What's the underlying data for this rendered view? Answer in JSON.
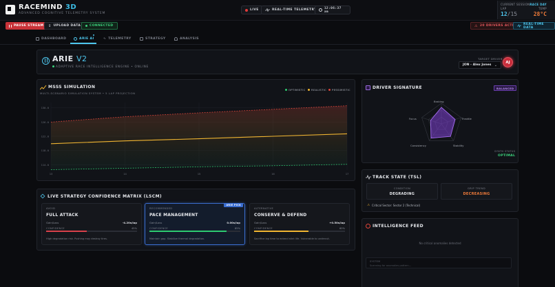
{
  "header": {
    "brand_main": "RACEMIND",
    "brand_accent": "3D",
    "subtitle": "ADVANCED COGNITIVE TELEMETRY SYSTEM",
    "live_label": "LIVE",
    "telemetry_label": "REAL-TIME TELEMETRY",
    "clock": "12:06:37 am",
    "session": {
      "label": "CURRENT SESSION",
      "day_label": "RACE DAY",
      "lap_label": "LAP",
      "temp_label": "TEMP",
      "lap_current": "12",
      "lap_total": "/15",
      "temp": "28°C"
    }
  },
  "actions": {
    "pause_label": "PAUSE STREAM",
    "upload_label": "UPLOAD DATA",
    "connected_label": "CONNECTED",
    "drivers_active_label": "20 DRIVERS ACTIVE",
    "realtime_data_label": "REAL-TIME DATA"
  },
  "nav": {
    "tabs": [
      {
        "label": "DASHBOARD"
      },
      {
        "label": "ARIE AI"
      },
      {
        "label": "TELEMETRY"
      },
      {
        "label": "STRATEGY"
      },
      {
        "label": "ANALYSIS"
      }
    ]
  },
  "arie": {
    "title": "ARIE",
    "version": "V2",
    "subtitle": "ADAPTIVE RACE INTELLIGENCE ENGINE • ONLINE",
    "target_driver_label": "TARGET DRIVER",
    "selected_driver": "JON - Alex Jones",
    "avatar_initials": "AJ"
  },
  "simulation": {
    "title": "MSSS SIMULATION",
    "subtitle": "MULTI-SCENARIO SIMULATION SYSTEM • 5 LAP PROJECTION",
    "legend": [
      "OPTIMISTIC",
      "REALISTIC",
      "PESSIMISTIC"
    ],
    "colors": {
      "optimistic": "#2ecc71",
      "realistic": "#f2b632",
      "pessimistic": "#e0453a"
    }
  },
  "chart_data": {
    "type": "line",
    "title": "MSSS SIMULATION",
    "xlabel": "",
    "ylabel": "",
    "x": [
      13,
      14,
      15,
      16,
      17
    ],
    "x_ticks": [
      "13",
      "14",
      "15",
      "16",
      "17"
    ],
    "y_ticks": [
      "130.0",
      "126.0",
      "122.0",
      "118.0",
      "114.0"
    ],
    "ylim": [
      112.5,
      131.5
    ],
    "series": [
      {
        "name": "PESSIMISTIC",
        "values": [
          126.0,
          127.5,
          128.6,
          129.6,
          130.6
        ],
        "color": "#e0453a",
        "style": "dashed"
      },
      {
        "name": "REALISTIC",
        "values": [
          119.9,
          120.7,
          121.3,
          122.0,
          122.7
        ],
        "color": "#f2b632",
        "style": "solid"
      },
      {
        "name": "OPTIMISTIC",
        "values": [
          112.6,
          113.0,
          113.4,
          113.7,
          114.1
        ],
        "color": "#2ecc71",
        "style": "dashed"
      }
    ]
  },
  "signature": {
    "title": "DRIVER SIGNATURE",
    "badge": "BALANCED",
    "axes": [
      "Braking",
      "Throttle",
      "Stability",
      "Consistency",
      "Focus"
    ],
    "values": [
      0.8,
      0.7,
      0.75,
      0.85,
      0.55
    ],
    "color": "#7e3fd1",
    "status_label": "SYNTH STATUS",
    "status_value": "OPTIMAL"
  },
  "track": {
    "title": "TRACK STATE (TSL)",
    "condition_label": "CONDITION",
    "condition_value": "DEGRADING",
    "trend_label": "GRIP TREND",
    "trend_value": "DECREASING",
    "alert": "Critical Sector: Sector 2 (Technical)"
  },
  "feed": {
    "title": "INTELLIGENCE FEED",
    "empty": "No critical anomalies detected",
    "status_label": "SYSTEM",
    "status_text": "Scanning for anomalies pattern..."
  },
  "matrix": {
    "title": "LIVE STRATEGY CONFIDENCE MATRIX (LSCM)",
    "gain_label": "Gain/Loss",
    "confidence_label": "CONFIDENCE",
    "cards": [
      {
        "kind": "AVOID",
        "name": "FULL ATTACK",
        "gain": "-4.20s/lap",
        "confidence": "45%",
        "confidence_value": 0.45,
        "color": "#d9414a",
        "desc": "High degradation risk. Pushing may destroy tires."
      },
      {
        "kind": "RECOMMENDED",
        "name": "PACE MANAGEMENT",
        "gain": "0.00s/lap",
        "confidence": "85%",
        "confidence_value": 0.85,
        "color": "#2ecc71",
        "desc": "Maintain gap. Stabilize thermal degradation.",
        "badge": "ARIE PICK"
      },
      {
        "kind": "ALTERNATIVE",
        "name": "CONSERVE & DEFEND",
        "gain": "+0.50s/lap",
        "confidence": "60%",
        "confidence_value": 0.6,
        "color": "#f2b632",
        "desc": "Sacrifice lap time to extend stint life. Vulnerable to undercut."
      }
    ]
  }
}
